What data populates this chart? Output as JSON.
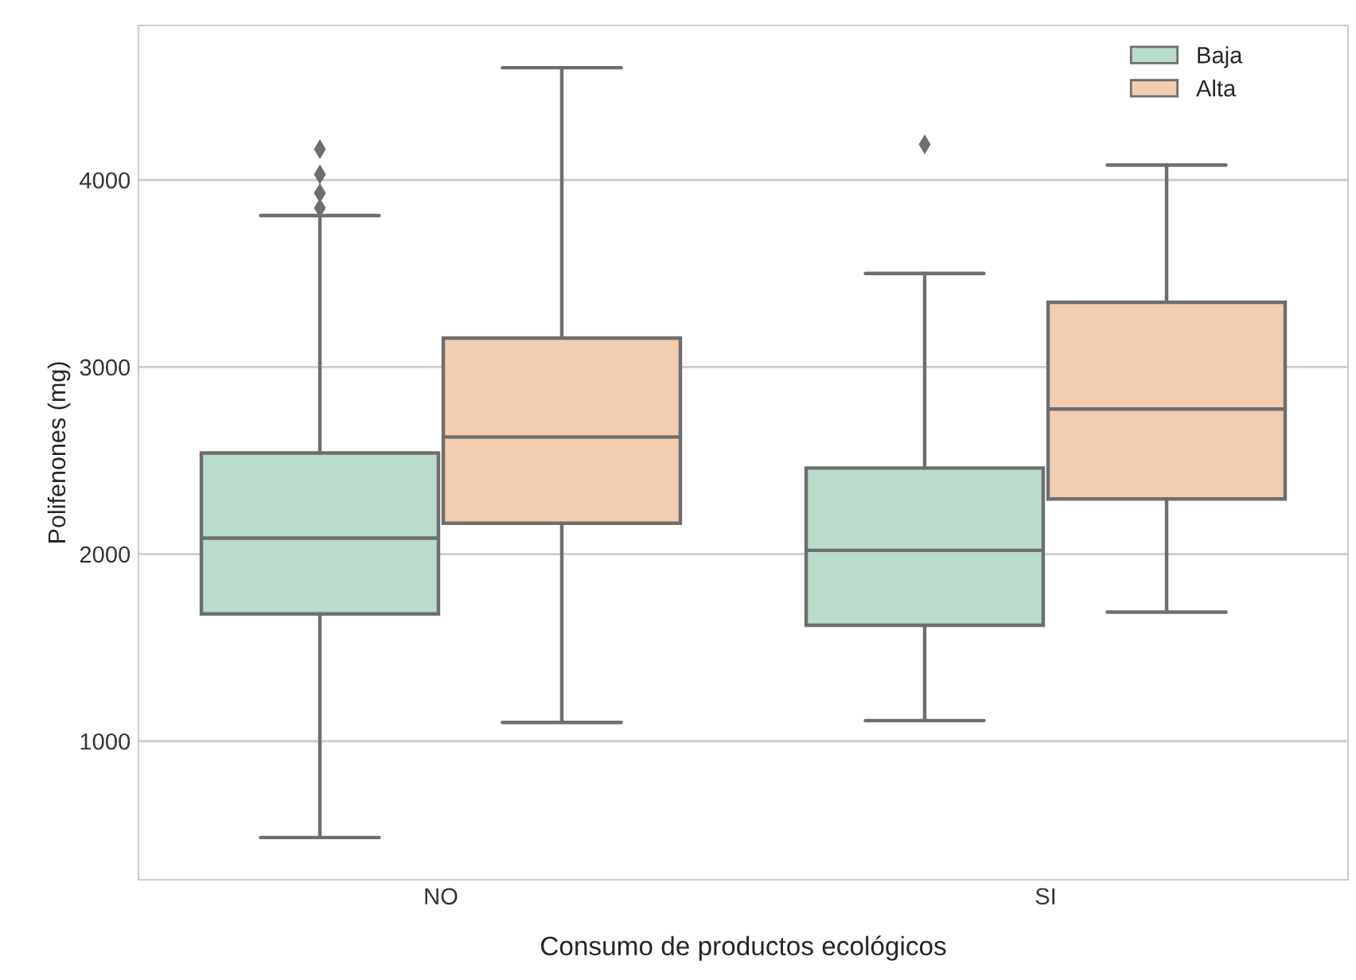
{
  "chart_data": {
    "type": "box",
    "xlabel": "Consumo de productos ecológicos",
    "ylabel": "Polifenones (mg)",
    "categories": [
      "NO",
      "SI"
    ],
    "series": [
      {
        "name": "Baja",
        "color": "#b9dccb",
        "boxes": [
          {
            "low": 485,
            "q1": 1680,
            "median": 2085,
            "q3": 2540,
            "high": 3810,
            "outliers": [
              3850,
              3930,
              4030,
              4165
            ]
          },
          {
            "low": 1110,
            "q1": 1620,
            "median": 2020,
            "q3": 2460,
            "high": 3500,
            "outliers": [
              4190
            ]
          }
        ]
      },
      {
        "name": "Alta",
        "color": "#f3cdb0",
        "boxes": [
          {
            "low": 1100,
            "q1": 2165,
            "median": 2626,
            "q3": 3155,
            "high": 4600
          },
          {
            "low": 1690,
            "q1": 2295,
            "median": 2775,
            "q3": 3346,
            "high": 4080
          }
        ]
      }
    ],
    "ylim": [
      259,
      4826
    ],
    "yticks": [
      1000,
      2000,
      3000,
      4000
    ],
    "grid": "y",
    "legend": "top right",
    "marker": "diamond"
  }
}
